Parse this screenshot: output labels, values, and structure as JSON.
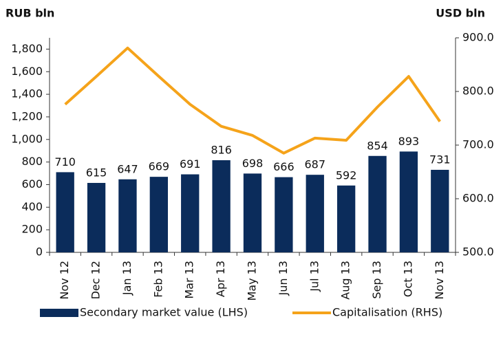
{
  "chart_data": {
    "type": "bar_line",
    "y_label": "RUB bln",
    "y2_label": "USD bln",
    "categories": [
      "Nov 12",
      "Dec 12",
      "Jan 13",
      "Feb 13",
      "Mar 13",
      "Apr 13",
      "May 13",
      "Jun 13",
      "Jul 13",
      "Aug 13",
      "Sep 13",
      "Oct 13",
      "Nov 13"
    ],
    "series": [
      {
        "name": "Secondary market value (LHS)",
        "type": "bar",
        "color": "#0b2c5b",
        "values": [
          710,
          615,
          647,
          669,
          691,
          816,
          698,
          666,
          687,
          592,
          854,
          893,
          731
        ]
      },
      {
        "name": "Capitalisation (RHS)",
        "type": "line",
        "axis": "y2",
        "color": "#f5a31a",
        "values": [
          776,
          828,
          881,
          828,
          776,
          735,
          718,
          685,
          713,
          709,
          771,
          828,
          744
        ]
      }
    ],
    "ylim": [
      0,
      1900
    ],
    "yticks": [
      0,
      200,
      400,
      600,
      800,
      {
        "value": 1000,
        "label": "1,000"
      },
      {
        "value": 1200,
        "label": "1,200"
      },
      {
        "value": 1400,
        "label": "1,400"
      },
      {
        "value": 1600,
        "label": "1,600"
      },
      {
        "value": 1800,
        "label": "1,800"
      }
    ],
    "y2lim": [
      500,
      900
    ],
    "y2ticks": [
      {
        "value": 500,
        "label": "500.0"
      },
      {
        "value": 600,
        "label": "600.0"
      },
      {
        "value": 700,
        "label": "700.0"
      },
      {
        "value": 800,
        "label": "800.0"
      },
      {
        "value": 900,
        "label": "900.0"
      }
    ],
    "grid": false,
    "legend": "bottom"
  }
}
